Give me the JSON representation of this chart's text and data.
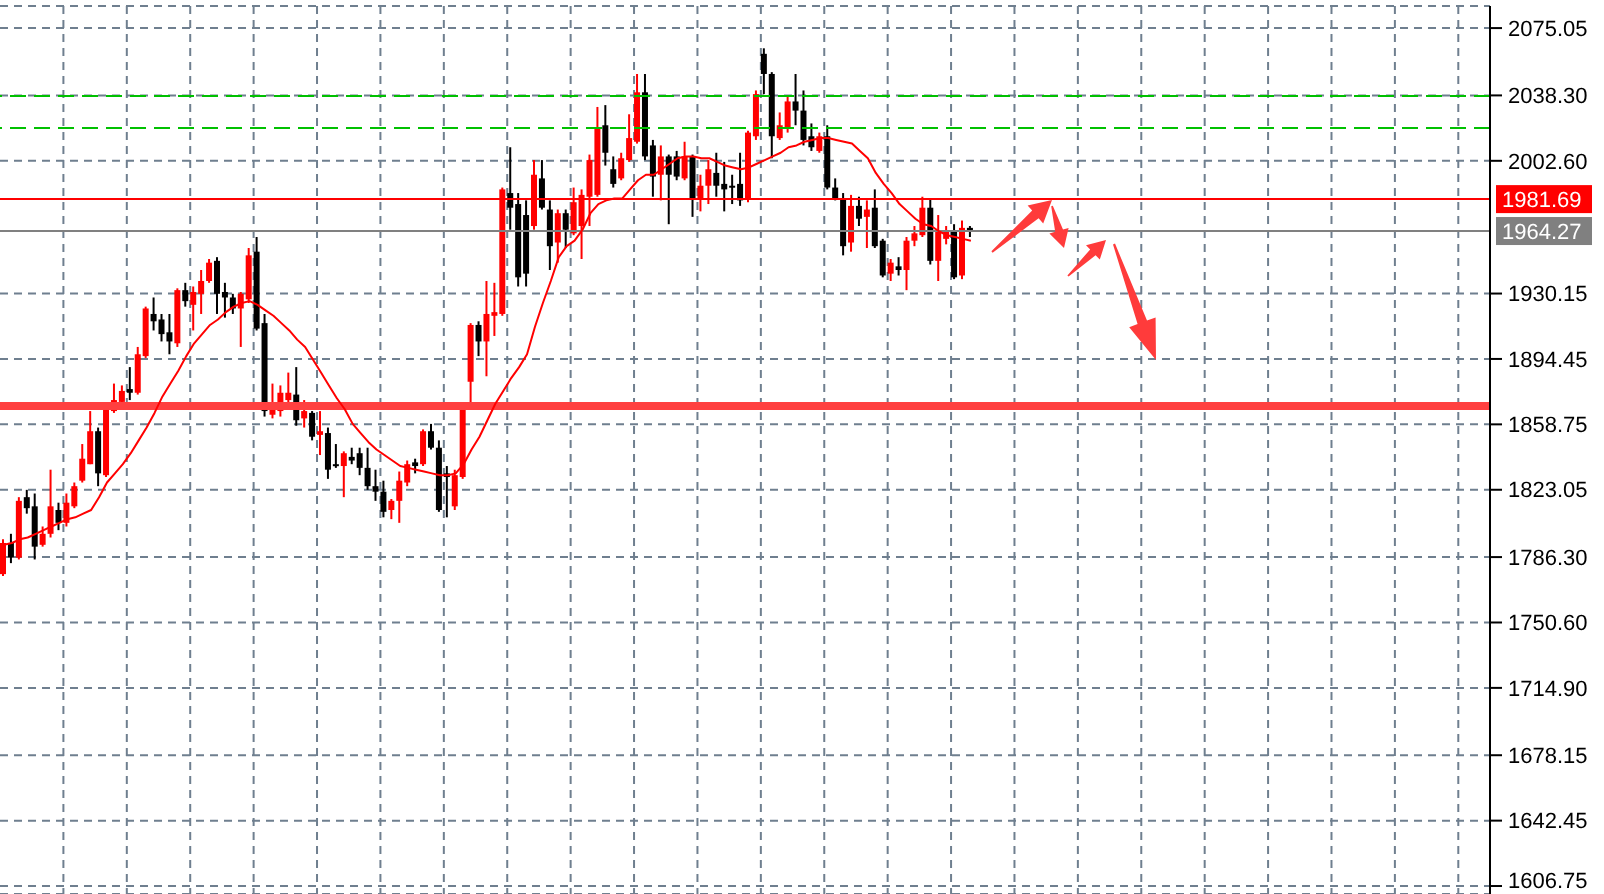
{
  "chart_data": {
    "type": "candlestick",
    "categories": [
      null,
      null,
      null,
      null,
      null,
      null,
      null,
      null,
      null,
      null,
      null,
      null,
      null,
      null,
      null,
      null,
      null,
      null,
      null,
      null,
      null,
      null,
      null,
      null,
      null,
      null,
      null,
      null,
      null,
      null,
      null,
      null,
      null,
      null,
      null,
      null,
      null,
      null,
      null,
      null,
      null,
      null,
      null,
      null,
      null,
      null,
      null,
      null,
      null,
      null,
      null,
      null,
      null,
      null,
      null,
      null,
      null,
      null,
      null,
      null,
      null,
      null,
      null,
      null,
      null,
      null,
      null,
      null,
      null,
      null,
      null,
      null,
      null,
      null,
      null,
      null,
      null,
      null,
      null,
      null,
      null,
      null,
      null,
      null,
      null,
      null,
      null,
      null,
      null,
      null,
      null,
      null,
      null,
      null,
      null,
      null,
      null,
      null,
      null,
      null,
      null,
      null,
      null,
      null,
      null,
      null,
      null,
      null,
      null,
      null,
      null,
      null,
      null,
      null,
      null,
      null,
      null,
      null,
      null,
      null,
      null,
      null,
      null,
      null,
      null,
      null,
      null,
      null,
      null,
      null,
      null,
      null,
      null,
      null,
      null,
      null,
      null,
      null,
      null,
      null,
      null,
      null,
      null,
      null,
      null,
      null,
      null,
      null,
      null,
      null,
      null,
      null,
      null,
      null,
      null,
      null,
      null,
      null,
      null,
      null,
      null,
      null,
      null,
      null,
      null,
      null,
      null,
      null,
      null,
      null,
      null,
      null,
      null,
      null,
      null,
      null,
      null,
      null,
      null,
      null,
      null,
      null,
      null,
      null,
      null,
      null,
      null,
      null
    ],
    "series": [
      {
        "ohlc": [
          [
            1777,
            1796,
            1776,
            1794
          ],
          [
            1794,
            1799,
            1783,
            1786
          ],
          [
            1786,
            1819,
            1785,
            1817
          ],
          [
            1819,
            1823,
            1810,
            1813
          ],
          [
            1814,
            1821,
            1785,
            1792
          ],
          [
            1793,
            1803,
            1792,
            1799
          ],
          [
            1799,
            1834,
            1797,
            1814
          ],
          [
            1812,
            1816,
            1801,
            1805
          ],
          [
            1805,
            1821,
            1803,
            1816
          ],
          [
            1814,
            1827,
            1813,
            1825
          ],
          [
            1828,
            1848,
            1827,
            1840
          ],
          [
            1837,
            1866,
            1837,
            1855
          ],
          [
            1855,
            1857,
            1825,
            1832
          ],
          [
            1831,
            1868,
            1830,
            1868
          ],
          [
            1866,
            1881,
            1865,
            1872
          ],
          [
            1871,
            1880,
            1870,
            1877
          ],
          [
            1878,
            1890,
            1872,
            1876
          ],
          [
            1876,
            1901,
            1875,
            1897
          ],
          [
            1896,
            1923,
            1895,
            1922
          ],
          [
            1919,
            1928,
            1910,
            1915
          ],
          [
            1916,
            1919,
            1904,
            1908
          ],
          [
            1909,
            1919,
            1897,
            1904
          ],
          [
            1903,
            1933,
            1901,
            1932
          ],
          [
            1932,
            1936,
            1923,
            1926
          ],
          [
            1924,
            1934,
            1910,
            1931
          ],
          [
            1930,
            1943,
            1919,
            1937
          ],
          [
            1937,
            1949,
            1936,
            1947
          ],
          [
            1948,
            1950,
            1919,
            1930
          ],
          [
            1931,
            1936,
            1917,
            1928
          ],
          [
            1928,
            1930,
            1919,
            1922
          ],
          [
            1922,
            1931,
            1901,
            1930
          ],
          [
            1927,
            1955,
            1925,
            1951
          ],
          [
            1953,
            1961,
            1910,
            1911
          ],
          [
            1914,
            1919,
            1863,
            1866
          ],
          [
            1864,
            1881,
            1862,
            1868
          ],
          [
            1866,
            1880,
            1863,
            1876
          ],
          [
            1872,
            1887,
            1868,
            1876
          ],
          [
            1875,
            1890,
            1858,
            1861
          ],
          [
            1862,
            1872,
            1857,
            1866
          ],
          [
            1865,
            1866,
            1850,
            1852
          ],
          [
            1853,
            1866,
            1842,
            1855
          ],
          [
            1854,
            1857,
            1829,
            1834
          ],
          [
            1837,
            1848,
            1835,
            1836
          ],
          [
            1836,
            1844,
            1819,
            1843
          ],
          [
            1841,
            1846,
            1837,
            1839
          ],
          [
            1843,
            1846,
            1831,
            1835
          ],
          [
            1835,
            1846,
            1823,
            1825
          ],
          [
            1825,
            1834,
            1817,
            1822
          ],
          [
            1822,
            1828,
            1808,
            1811
          ],
          [
            1812,
            1818,
            1807,
            1817
          ],
          [
            1817,
            1833,
            1805,
            1828
          ],
          [
            1827,
            1839,
            1825,
            1837
          ],
          [
            1838,
            1840,
            1832,
            1836
          ],
          [
            1837,
            1856,
            1836,
            1855
          ],
          [
            1855,
            1859,
            1845,
            1846
          ],
          [
            1846,
            1850,
            1811,
            1812
          ],
          [
            1832,
            1836,
            1808,
            1830
          ],
          [
            1814,
            1834,
            1812,
            1831
          ],
          [
            1830,
            1869,
            1829,
            1868
          ],
          [
            1882,
            1914,
            1870,
            1913
          ],
          [
            1913,
            1915,
            1896,
            1904
          ],
          [
            1904,
            1937,
            1885,
            1919
          ],
          [
            1918,
            1936,
            1907,
            1920
          ],
          [
            1919,
            1988,
            1918,
            1987
          ],
          [
            1985,
            2010,
            1965,
            1977
          ],
          [
            1979,
            1985,
            1934,
            1939
          ],
          [
            1973,
            1981,
            1934,
            1941
          ],
          [
            1967,
            2003,
            1965,
            1995
          ],
          [
            1993,
            2003,
            1976,
            1977
          ],
          [
            1976,
            1981,
            1943,
            1956
          ],
          [
            1958,
            1976,
            1947,
            1974
          ],
          [
            1974,
            1976,
            1955,
            1965
          ],
          [
            1963,
            1988,
            1962,
            1980
          ],
          [
            1967,
            1987,
            1949,
            1984
          ],
          [
            1983,
            2006,
            1967,
            2003
          ],
          [
            1984,
            2032,
            1983,
            2020
          ],
          [
            2022,
            2033,
            2000,
            2007
          ],
          [
            1998,
            2005,
            1988,
            1990
          ],
          [
            1993,
            2007,
            1992,
            2004
          ],
          [
            2003,
            2028,
            2002,
            2015
          ],
          [
            2013,
            2050,
            2012,
            2040
          ],
          [
            2040,
            2050,
            2003,
            2005
          ],
          [
            2011,
            2014,
            1983,
            1994
          ],
          [
            1995,
            2011,
            1981,
            2005
          ],
          [
            2005,
            2006,
            1968,
            1995
          ],
          [
            2005,
            2008,
            1992,
            1994
          ],
          [
            1993,
            2013,
            1992,
            2005
          ],
          [
            2005,
            2006,
            1972,
            1982
          ],
          [
            1982,
            1995,
            1975,
            1989
          ],
          [
            1989,
            2003,
            1979,
            1998
          ],
          [
            1996,
            2007,
            1983,
            1989
          ],
          [
            1990,
            2002,
            1975,
            1987
          ],
          [
            1989,
            1995,
            1979,
            1988
          ],
          [
            1990,
            2007,
            1978,
            1981
          ],
          [
            1982,
            2019,
            1980,
            2018
          ],
          [
            2016,
            2041,
            2014,
            2039
          ],
          [
            2061,
            2064,
            2039,
            2050
          ],
          [
            2050,
            2051,
            2004,
            2016
          ],
          [
            2015,
            2029,
            2014,
            2022
          ],
          [
            2021,
            2038,
            2018,
            2035
          ],
          [
            2035,
            2050,
            2022,
            2030
          ],
          [
            2030,
            2041,
            2011,
            2014
          ],
          [
            2016,
            2023,
            2008,
            2010
          ],
          [
            2008,
            2018,
            2007,
            2016
          ],
          [
            2016,
            2022,
            1987,
            1988
          ],
          [
            1988,
            1993,
            1981,
            1982
          ],
          [
            1982,
            1985,
            1951,
            1956
          ],
          [
            1958,
            1984,
            1953,
            1978
          ],
          [
            1978,
            1983,
            1967,
            1971
          ],
          [
            1972,
            1981,
            1955,
            1976
          ],
          [
            1977,
            1987,
            1955,
            1956
          ],
          [
            1959,
            1960,
            1939,
            1940
          ],
          [
            1941,
            1949,
            1937,
            1947
          ],
          [
            1945,
            1950,
            1940,
            1943
          ],
          [
            1943,
            1961,
            1932,
            1959
          ],
          [
            1959,
            1967,
            1956,
            1963
          ],
          [
            1962,
            1983,
            1961,
            1977
          ],
          [
            1977,
            1982,
            1946,
            1948
          ],
          [
            1948,
            1973,
            1937,
            1964
          ],
          [
            1960,
            1967,
            1957,
            1964
          ],
          [
            1964,
            1968,
            1938,
            1939
          ],
          [
            1940,
            1970,
            1938,
            1966
          ],
          [
            1966,
            1967,
            1961,
            1964
          ],
          null,
          null,
          null,
          null,
          null,
          null,
          null,
          null,
          null,
          null,
          null,
          null,
          null,
          null,
          null,
          null,
          null,
          null,
          null,
          null,
          null,
          null,
          null,
          null,
          null,
          null,
          null,
          null,
          null,
          null,
          null,
          null,
          null,
          null,
          null,
          null,
          null,
          null,
          null,
          null,
          null,
          null,
          null,
          null,
          null,
          null,
          null,
          null,
          null,
          null,
          null,
          null,
          null,
          null,
          null,
          null,
          null,
          null,
          null,
          null,
          null,
          null,
          null,
          null,
          null
        ],
        "colors": [
          "#ff0000",
          "#000000",
          "#ff0000",
          "#000000",
          "#000000",
          "#ff0000",
          "#ff0000",
          "#000000",
          "#ff0000",
          "#ff0000",
          "#ff0000",
          "#ff0000",
          "#000000",
          "#ff0000",
          "#ff0000",
          "#ff0000",
          "#000000",
          "#ff0000",
          "#ff0000",
          "#000000",
          "#000000",
          "#000000",
          "#ff0000",
          "#000000",
          "#ff0000",
          "#ff0000",
          "#ff0000",
          "#000000",
          "#000000",
          "#000000",
          "#ff0000",
          "#ff0000",
          "#000000",
          "#000000",
          "#ff0000",
          "#ff0000",
          "#ff0000",
          "#000000",
          "#ff0000",
          "#000000",
          "#ff0000",
          "#000000",
          "#000000",
          "#ff0000",
          "#000000",
          "#000000",
          "#000000",
          "#000000",
          "#000000",
          "#ff0000",
          "#ff0000",
          "#ff0000",
          "#000000",
          "#ff0000",
          "#000000",
          "#000000",
          "#000000",
          "#ff0000",
          "#ff0000",
          "#ff0000",
          "#000000",
          "#ff0000",
          "#ff0000",
          "#ff0000",
          "#000000",
          "#000000",
          "#000000",
          "#ff0000",
          "#000000",
          "#000000",
          "#ff0000",
          "#000000",
          "#ff0000",
          "#ff0000",
          "#ff0000",
          "#ff0000",
          "#000000",
          "#000000",
          "#ff0000",
          "#ff0000",
          "#ff0000",
          "#000000",
          "#000000",
          "#ff0000",
          "#000000",
          "#000000",
          "#ff0000",
          "#000000",
          "#ff0000",
          "#ff0000",
          "#000000",
          "#000000",
          "#000000",
          "#000000",
          "#ff0000",
          "#ff0000",
          "#000000",
          "#000000",
          "#ff0000",
          "#ff0000",
          "#000000",
          "#000000",
          "#000000",
          "#ff0000",
          "#000000",
          "#000000",
          "#000000",
          "#ff0000",
          "#000000",
          "#ff0000",
          "#000000",
          "#000000",
          "#ff0000",
          "#000000",
          "#ff0000",
          "#ff0000",
          "#ff0000",
          "#000000",
          "#ff0000",
          "#ff0000",
          "#000000",
          "#ff0000",
          "#000000",
          null,
          null,
          null,
          null,
          null,
          null,
          null,
          null,
          null,
          null,
          null,
          null,
          null,
          null,
          null,
          null,
          null,
          null,
          null,
          null,
          null,
          null,
          null,
          null,
          null,
          null,
          null,
          null,
          null,
          null,
          null,
          null,
          null,
          null,
          null,
          null,
          null,
          null,
          null,
          null,
          null,
          null,
          null,
          null,
          null,
          null,
          null,
          null,
          null,
          null,
          null,
          null,
          null,
          null,
          null,
          null,
          null,
          null,
          null,
          null,
          null,
          null,
          null,
          null,
          null
        ]
      },
      {
        "type": "line",
        "color": "#ff0000",
        "values": [
          1793,
          1794,
          1796,
          1797,
          1799,
          1801,
          1803,
          1805,
          1807,
          1808,
          1810,
          1812,
          1819,
          1827,
          1832,
          1837,
          1843,
          1850,
          1857,
          1865,
          1874,
          1881,
          1888,
          1896,
          1903,
          1908,
          1913,
          1916,
          1920,
          1923,
          1925,
          1926,
          1924,
          1921,
          1918,
          1914,
          1910,
          1905,
          1901,
          1894,
          1887,
          1880,
          1873,
          1867,
          1859,
          1854,
          1849,
          1845,
          1842,
          1839,
          1836,
          1835,
          1834,
          1833,
          1832,
          1831,
          1831,
          1832,
          1837,
          1845,
          1852,
          1861,
          1870,
          1877,
          1884,
          1890,
          1897,
          1912,
          1925,
          1937,
          1950,
          1956,
          1959,
          1965,
          1974,
          1979,
          1981,
          1982,
          1982,
          1987,
          1992,
          1995,
          1995,
          1998,
          2001,
          2004,
          2005,
          2005,
          2004,
          2004,
          2002,
          2000,
          1999,
          1998,
          1999,
          2001,
          2003,
          2005,
          2007,
          2010,
          2011,
          2013,
          2014,
          2015,
          2015,
          2014,
          2013,
          2012,
          2008,
          2004,
          1996,
          1990,
          1985,
          1979,
          1975,
          1971,
          1968,
          1967,
          1964,
          1962,
          1961,
          1960,
          1959,
          null,
          null,
          null,
          null,
          null,
          null,
          null,
          null,
          null,
          null,
          null,
          null,
          null,
          null,
          null,
          null,
          null,
          null,
          null,
          null,
          null,
          null,
          null,
          null,
          null,
          null,
          null,
          null,
          null,
          null,
          null,
          null,
          null,
          null,
          null,
          null,
          null,
          null,
          null,
          null,
          null,
          null,
          null,
          null,
          null,
          null,
          null,
          null,
          null,
          null,
          null,
          null,
          null,
          null,
          null,
          null,
          null,
          null,
          null,
          null,
          null,
          null,
          null,
          null,
          null
        ]
      }
    ],
    "ylim": [
      1602.4,
      2087.1
    ],
    "yticks": [
      2075.05,
      {
        "value": 2038.3,
        "label": "2038.30"
      },
      {
        "value": 2002.6,
        "label": "2002.60"
      },
      1930.15,
      1894.45,
      1858.75,
      1823.05,
      {
        "value": 1786.3,
        "label": "1786.30"
      },
      {
        "value": 1750.6,
        "label": "1750.60"
      },
      {
        "value": 1714.9,
        "label": "1714.90"
      },
      1678.15,
      1642.45,
      1606.75
    ],
    "ref_lines": [
      {
        "axis": "y",
        "value": 2038,
        "color": "#00c000",
        "line_style": "dashed"
      },
      {
        "axis": "y",
        "value": 2020.5,
        "color": "#00c000",
        "line_style": "dashed"
      },
      {
        "axis": "y",
        "value": 1981.69,
        "label": "1981.69",
        "color": "#ff0000",
        "line_style": "solid"
      },
      {
        "axis": "y",
        "value": 1964.27,
        "label": "1964.27",
        "color": "#808080",
        "line_style": "solid"
      },
      {
        "axis": "y",
        "value": 1868.7,
        "color": "#ff4040",
        "line_style": "solid"
      }
    ],
    "grid": true,
    "legend": false,
    "marker": "none",
    "tick_labels": "y"
  }
}
